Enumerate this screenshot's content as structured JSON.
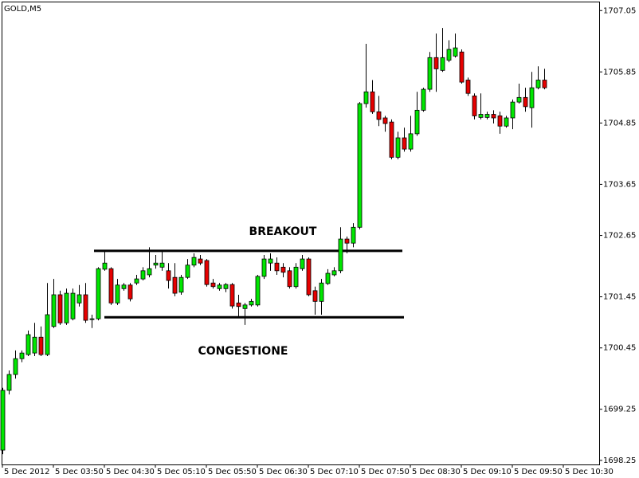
{
  "chart_data": {
    "type": "candlestick",
    "title": "GOLD,M5",
    "categories": [
      "5 Dec 2012",
      null,
      null,
      null,
      null,
      null,
      null,
      null,
      "5 Dec 03:50",
      null,
      null,
      null,
      null,
      null,
      null,
      null,
      "5 Dec 04:30",
      null,
      null,
      null,
      null,
      null,
      null,
      null,
      "5 Dec 05:10",
      null,
      null,
      null,
      null,
      null,
      null,
      null,
      "5 Dec 05:50",
      null,
      null,
      null,
      null,
      null,
      null,
      null,
      "5 Dec 06:30",
      null,
      null,
      null,
      null,
      null,
      null,
      null,
      "5 Dec 07:10",
      null,
      null,
      null,
      null,
      null,
      null,
      null,
      "5 Dec 07:50",
      null,
      null,
      null,
      null,
      null,
      null,
      null,
      "5 Dec 08:30",
      null,
      null,
      null,
      null,
      null,
      null,
      null,
      "5 Dec 09:10",
      null,
      null,
      null,
      null,
      null,
      null,
      null,
      "5 Dec 09:50",
      null,
      null,
      null,
      null,
      null,
      null,
      null,
      "5 Dec 10:30"
    ],
    "open": [
      1698.45,
      1699.62,
      1699.93,
      1700.24,
      1700.32,
      1700.35,
      1700.66,
      1700.32,
      1700.87,
      1701.49,
      1700.94,
      1701.02,
      1701.33,
      1701.49,
      1701.02,
      1701.02,
      1701.99,
      1702.0,
      1701.33,
      1701.61,
      1701.68,
      1701.72,
      1701.8,
      1701.88,
      1702.07,
      1702.03,
      1701.96,
      1701.83,
      1701.54,
      1701.83,
      1702.07,
      1702.19,
      1702.16,
      1701.72,
      1701.61,
      1701.61,
      1701.69,
      1701.33,
      1701.22,
      1701.29,
      1701.29,
      1701.85,
      1702.11,
      1702.11,
      1702.03,
      1701.96,
      1701.65,
      1702.0,
      1702.19,
      1701.57,
      1701.36,
      1701.71,
      1701.88,
      1701.96,
      1702.58,
      1702.5,
      1702.81,
      1705.23,
      1705.46,
      1705.07,
      1704.95,
      1704.87,
      1704.18,
      1704.56,
      1704.34,
      1704.64,
      1705.1,
      1705.51,
      1706.13,
      1705.88,
      1706.08,
      1706.16,
      1706.24,
      1705.69,
      1705.38,
      1704.96,
      1704.96,
      1705.02,
      1704.99,
      1704.79,
      1704.95,
      1705.26,
      1705.35,
      1705.15,
      1705.54,
      1705.69,
      null,
      null,
      null
    ],
    "high": [
      1699.67,
      1700.01,
      1700.4,
      1700.4,
      1700.79,
      1700.94,
      1700.87,
      1701.72,
      1701.8,
      1701.57,
      1701.61,
      1701.61,
      1701.68,
      1701.72,
      1701.1,
      1702.03,
      1702.35,
      1702.03,
      1701.8,
      1701.72,
      1701.72,
      1701.88,
      1702.03,
      1702.42,
      1702.27,
      1702.35,
      1702.11,
      1702.11,
      1701.88,
      1702.19,
      1702.3,
      1702.27,
      1702.19,
      1701.8,
      1701.72,
      1701.72,
      1701.72,
      1701.49,
      1701.33,
      1701.41,
      1701.88,
      1702.27,
      1702.3,
      1702.22,
      1702.11,
      1702.03,
      1702.11,
      1702.27,
      1702.22,
      1701.65,
      1701.8,
      1701.99,
      1702.03,
      1702.81,
      1702.63,
      1702.89,
      1705.26,
      1706.4,
      1705.69,
      1705.38,
      1704.99,
      1704.92,
      1704.68,
      1704.76,
      1704.99,
      1705.46,
      1705.54,
      1706.24,
      1706.6,
      1706.71,
      1706.47,
      1706.6,
      1706.29,
      1705.74,
      1705.43,
      1705.43,
      1705.07,
      1705.1,
      1705.07,
      1704.99,
      1705.31,
      1705.62,
      1705.54,
      1705.85,
      1705.96,
      1705.91,
      null,
      null,
      null
    ],
    "low": [
      1698.37,
      1699.54,
      1699.85,
      1700.17,
      1700.29,
      1700.29,
      1700.29,
      1700.29,
      1700.84,
      1700.9,
      1700.9,
      1700.99,
      1701.26,
      1700.94,
      1700.84,
      1700.99,
      1701.96,
      1701.29,
      1701.29,
      1701.57,
      1701.36,
      1701.68,
      1701.77,
      1701.83,
      1702.0,
      1701.96,
      1701.61,
      1701.46,
      1701.49,
      1701.8,
      1702.03,
      1702.07,
      1701.65,
      1701.61,
      1701.57,
      1701.54,
      1701.22,
      1701.05,
      1700.9,
      1701.26,
      1701.26,
      1701.8,
      1701.96,
      1701.88,
      1701.83,
      1701.61,
      1701.61,
      1701.96,
      1701.46,
      1701.1,
      1701.1,
      1701.68,
      1701.85,
      1701.91,
      1702.3,
      1702.42,
      1702.77,
      1705.15,
      1705.03,
      1704.79,
      1704.68,
      1704.14,
      1704.14,
      1704.29,
      1704.29,
      1704.6,
      1705.07,
      1705.46,
      1705.46,
      1705.85,
      1706.04,
      1706.13,
      1705.62,
      1705.38,
      1704.92,
      1704.92,
      1704.92,
      1704.84,
      1704.64,
      1704.76,
      1704.73,
      1705.23,
      1705.07,
      1704.76,
      1705.51,
      1705.51,
      null,
      null,
      null
    ],
    "close": [
      1699.62,
      1699.93,
      1700.24,
      1700.35,
      1700.71,
      1700.66,
      1700.32,
      1701.1,
      1701.49,
      1700.94,
      1701.52,
      1701.52,
      1701.49,
      1700.99,
      1701.02,
      1702.0,
      1702.11,
      1701.33,
      1701.68,
      1701.68,
      1701.41,
      1701.8,
      1701.96,
      1702.0,
      1702.11,
      1702.11,
      1701.77,
      1701.52,
      1701.83,
      1702.07,
      1702.22,
      1702.11,
      1701.69,
      1701.65,
      1701.68,
      1701.69,
      1701.27,
      1701.26,
      1701.29,
      1701.36,
      1701.85,
      1702.19,
      1702.19,
      1701.96,
      1701.93,
      1701.65,
      1702.03,
      1702.19,
      1701.49,
      1701.36,
      1701.72,
      1701.91,
      1701.96,
      1702.58,
      1702.5,
      1702.81,
      1705.23,
      1705.46,
      1705.07,
      1704.92,
      1704.84,
      1704.18,
      1704.56,
      1704.34,
      1704.64,
      1705.1,
      1705.51,
      1706.13,
      1705.91,
      1706.13,
      1706.29,
      1706.32,
      1705.65,
      1705.43,
      1704.99,
      1705.02,
      1705.02,
      1704.95,
      1704.79,
      1704.95,
      1705.26,
      1705.35,
      1705.17,
      1705.54,
      1705.69,
      1705.54,
      null,
      null,
      null
    ],
    "up_color": "#00e600",
    "down_color": "#e60000",
    "ylim": [
      1698.17,
      1707.21
    ],
    "yticks": [
      1698.25,
      1699.25,
      1700.45,
      1701.45,
      1702.65,
      1703.65,
      1704.85,
      1705.85,
      1707.05
    ],
    "levels": [
      1702.35,
      1701.05
    ],
    "annotations": [
      "BREAKOUT",
      "CONGESTIONE"
    ]
  }
}
